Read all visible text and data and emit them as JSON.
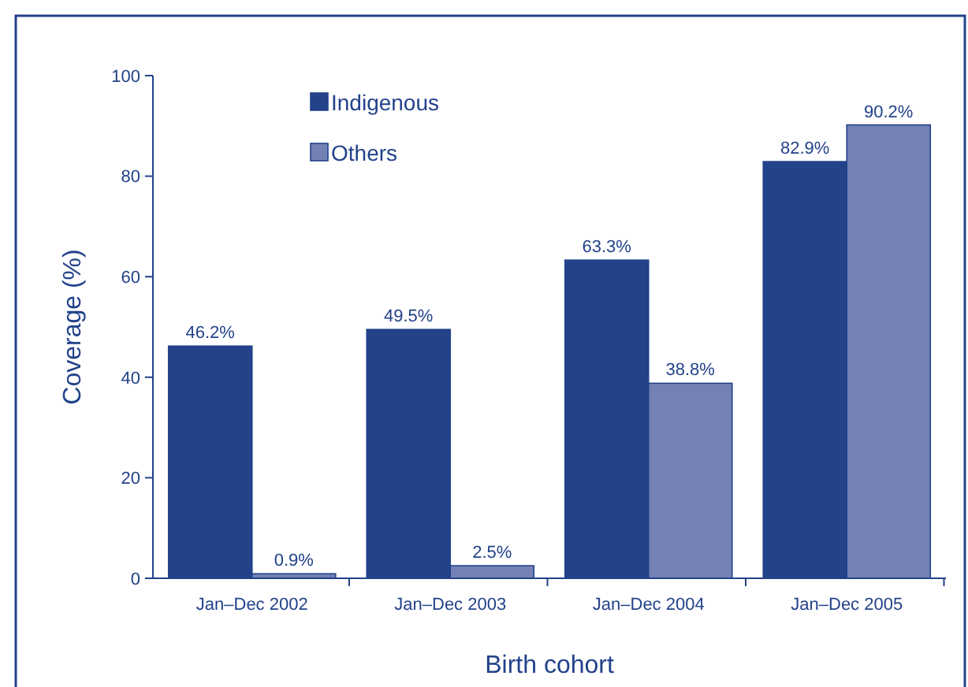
{
  "chart_data": {
    "type": "bar",
    "xlabel": "Birth cohort",
    "ylabel": "Coverage (%)",
    "categories": [
      "Jan–Dec 2002",
      "Jan–Dec 2003",
      "Jan–Dec 2004",
      "Jan–Dec 2005"
    ],
    "series": [
      {
        "name": "Indigenous",
        "color": "#22428a",
        "values": [
          46.2,
          49.5,
          63.3,
          82.9
        ],
        "value_labels": [
          "46.2%",
          "49.5%",
          "63.3%",
          "82.9%"
        ]
      },
      {
        "name": "Others",
        "color": "#7481b5",
        "values": [
          0.9,
          2.5,
          38.8,
          90.2
        ],
        "value_labels": [
          "0.9%",
          "2.5%",
          "38.8%",
          "90.2%"
        ]
      }
    ],
    "ylim": [
      0,
      100
    ],
    "yticks": [
      0,
      20,
      40,
      60,
      80,
      100
    ],
    "grid": false,
    "legend": "top left"
  }
}
